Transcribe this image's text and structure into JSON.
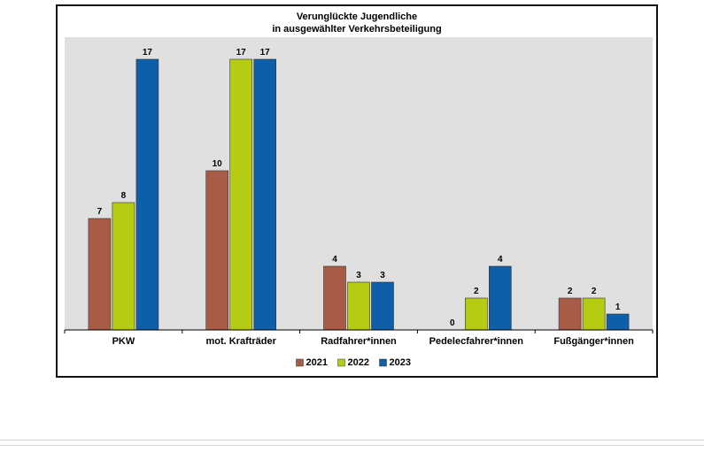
{
  "chart_data": {
    "type": "bar",
    "title": [
      "Verunglückte Jugendliche",
      "in ausgewählter Verkehrsbeteiligung"
    ],
    "categories": [
      "PKW",
      "mot. Krafträder",
      "Radfahrer*innen",
      "Pedelecfahrer*innen",
      "Fußgänger*innen"
    ],
    "series": [
      {
        "name": "2021",
        "color": "#a85c45",
        "values": [
          7,
          10,
          4,
          0,
          2
        ]
      },
      {
        "name": "2022",
        "color": "#b5cc12",
        "values": [
          8,
          17,
          3,
          2,
          2
        ]
      },
      {
        "name": "2023",
        "color": "#0e5fa8",
        "values": [
          17,
          17,
          3,
          4,
          1
        ]
      }
    ],
    "ylim": [
      0,
      18
    ],
    "plot_background": "#e0e0e0",
    "grid": false,
    "legend_position": "bottom-center",
    "data_labels": true
  }
}
